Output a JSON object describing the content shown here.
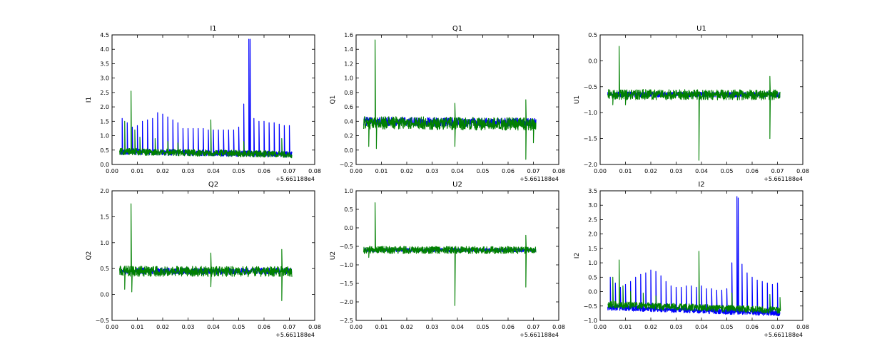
{
  "figure": {
    "background": "#ffffff",
    "series_colors": [
      "#0000ff",
      "#008000"
    ]
  },
  "chart_data": [
    {
      "type": "line",
      "title": "I1",
      "ylabel": "I1",
      "xlim": [
        0.0,
        0.08
      ],
      "ylim": [
        0.0,
        4.5
      ],
      "x_ticks": [
        "0.00",
        "0.01",
        "0.02",
        "0.03",
        "0.04",
        "0.05",
        "0.06",
        "0.07",
        "0.08"
      ],
      "y_ticks": [
        "0.0",
        "0.5",
        "1.0",
        "1.5",
        "2.0",
        "2.5",
        "3.0",
        "3.5",
        "4.0",
        "4.5"
      ],
      "x_offset_label": "+5.661188e4",
      "x_range": [
        0.003,
        0.071
      ],
      "grid": false,
      "series": [
        {
          "color": "#0000ff",
          "base_start": 0.45,
          "base_end": 0.35,
          "noise": 0.1,
          "spikes": [
            [
              0.004,
              1.6
            ],
            [
              0.006,
              1.45
            ],
            [
              0.008,
              1.3
            ],
            [
              0.01,
              1.35
            ],
            [
              0.012,
              1.5
            ],
            [
              0.014,
              1.55
            ],
            [
              0.016,
              1.6
            ],
            [
              0.018,
              1.8
            ],
            [
              0.02,
              1.75
            ],
            [
              0.022,
              1.65
            ],
            [
              0.024,
              1.55
            ],
            [
              0.026,
              1.45
            ],
            [
              0.028,
              1.25
            ],
            [
              0.03,
              1.25
            ],
            [
              0.032,
              1.25
            ],
            [
              0.034,
              1.25
            ],
            [
              0.036,
              1.25
            ],
            [
              0.038,
              1.2
            ],
            [
              0.04,
              1.2
            ],
            [
              0.042,
              1.2
            ],
            [
              0.044,
              1.2
            ],
            [
              0.046,
              1.2
            ],
            [
              0.048,
              1.2
            ],
            [
              0.05,
              1.3
            ],
            [
              0.052,
              2.1
            ],
            [
              0.054,
              4.35
            ],
            [
              0.0545,
              4.35
            ],
            [
              0.056,
              1.6
            ],
            [
              0.058,
              1.5
            ],
            [
              0.06,
              1.5
            ],
            [
              0.062,
              1.45
            ],
            [
              0.064,
              1.45
            ],
            [
              0.066,
              1.4
            ],
            [
              0.068,
              1.35
            ],
            [
              0.07,
              1.35
            ]
          ]
        },
        {
          "color": "#008000",
          "base_start": 0.45,
          "base_end": 0.35,
          "noise": 0.12,
          "spikes": [
            [
              0.005,
              1.5
            ],
            [
              0.0075,
              2.55
            ],
            [
              0.009,
              1.2
            ],
            [
              0.011,
              0.95
            ],
            [
              0.017,
              0.9
            ],
            [
              0.022,
              0.8
            ],
            [
              0.026,
              0.75
            ],
            [
              0.039,
              1.55
            ],
            [
              0.052,
              0.8
            ],
            [
              0.067,
              0.9
            ]
          ]
        }
      ]
    },
    {
      "type": "line",
      "title": "Q1",
      "ylabel": "Q1",
      "xlim": [
        0.0,
        0.08
      ],
      "ylim": [
        -0.2,
        1.6
      ],
      "x_ticks": [
        "0.00",
        "0.01",
        "0.02",
        "0.03",
        "0.04",
        "0.05",
        "0.06",
        "0.07",
        "0.08"
      ],
      "y_ticks": [
        "−0.2",
        "0.0",
        "0.2",
        "0.4",
        "0.6",
        "0.8",
        "1.0",
        "1.2",
        "1.4",
        "1.6"
      ],
      "x_offset_label": "+5.661188e4",
      "x_range": [
        0.003,
        0.071
      ],
      "grid": false,
      "series": [
        {
          "color": "#0000ff",
          "base_start": 0.4,
          "base_end": 0.38,
          "noise": 0.06,
          "spikes": []
        },
        {
          "color": "#008000",
          "base_start": 0.38,
          "base_end": 0.36,
          "noise": 0.09,
          "spikes": [
            [
              0.0075,
              1.53
            ],
            [
              0.039,
              0.65
            ],
            [
              0.067,
              0.7
            ],
            [
              0.005,
              0.05
            ],
            [
              0.008,
              0.02
            ],
            [
              0.039,
              0.05
            ],
            [
              0.067,
              -0.13
            ],
            [
              0.07,
              0.1
            ]
          ]
        }
      ]
    },
    {
      "type": "line",
      "title": "U1",
      "ylabel": "U1",
      "xlim": [
        0.0,
        0.08
      ],
      "ylim": [
        -2.0,
        0.5
      ],
      "x_ticks": [
        "0.00",
        "0.01",
        "0.02",
        "0.03",
        "0.04",
        "0.05",
        "0.06",
        "0.07",
        "0.08"
      ],
      "y_ticks": [
        "−2.0",
        "−1.5",
        "−1.0",
        "−0.5",
        "0.0",
        "0.5"
      ],
      "x_offset_label": "+5.661188e4",
      "x_range": [
        0.003,
        0.071
      ],
      "grid": false,
      "series": [
        {
          "color": "#0000ff",
          "base_start": -0.65,
          "base_end": -0.65,
          "noise": 0.05,
          "spikes": []
        },
        {
          "color": "#008000",
          "base_start": -0.65,
          "base_end": -0.66,
          "noise": 0.1,
          "spikes": [
            [
              0.0075,
              0.28
            ],
            [
              0.039,
              -1.92
            ],
            [
              0.067,
              -0.3
            ],
            [
              0.067,
              -1.5
            ],
            [
              0.005,
              -0.85
            ],
            [
              0.01,
              -0.85
            ]
          ]
        }
      ]
    },
    {
      "type": "line",
      "title": "Q2",
      "ylabel": "Q2",
      "xlim": [
        0.0,
        0.08
      ],
      "ylim": [
        -0.5,
        2.0
      ],
      "x_ticks": [
        "0.00",
        "0.01",
        "0.02",
        "0.03",
        "0.04",
        "0.05",
        "0.06",
        "0.07",
        "0.08"
      ],
      "y_ticks": [
        "−0.5",
        "0.0",
        "0.5",
        "1.0",
        "1.5",
        "2.0"
      ],
      "x_offset_label": "+5.661188e4",
      "x_range": [
        0.003,
        0.071
      ],
      "grid": false,
      "series": [
        {
          "color": "#0000ff",
          "base_start": 0.45,
          "base_end": 0.45,
          "noise": 0.06,
          "spikes": []
        },
        {
          "color": "#008000",
          "base_start": 0.45,
          "base_end": 0.44,
          "noise": 0.1,
          "spikes": [
            [
              0.0075,
              1.75
            ],
            [
              0.039,
              0.8
            ],
            [
              0.067,
              0.87
            ],
            [
              0.005,
              0.1
            ],
            [
              0.0078,
              0.05
            ],
            [
              0.039,
              0.15
            ],
            [
              0.067,
              -0.12
            ]
          ]
        }
      ]
    },
    {
      "type": "line",
      "title": "U2",
      "ylabel": "U2",
      "xlim": [
        0.0,
        0.08
      ],
      "ylim": [
        -2.5,
        1.0
      ],
      "x_ticks": [
        "0.00",
        "0.01",
        "0.02",
        "0.03",
        "0.04",
        "0.05",
        "0.06",
        "0.07",
        "0.08"
      ],
      "y_ticks": [
        "−2.5",
        "−2.0",
        "−1.5",
        "−1.0",
        "−0.5",
        "0.0",
        "0.5",
        "1.0"
      ],
      "x_offset_label": "+5.661188e4",
      "x_range": [
        0.003,
        0.071
      ],
      "grid": false,
      "series": [
        {
          "color": "#0000ff",
          "base_start": -0.6,
          "base_end": -0.6,
          "noise": 0.05,
          "spikes": []
        },
        {
          "color": "#008000",
          "base_start": -0.6,
          "base_end": -0.6,
          "noise": 0.1,
          "spikes": [
            [
              0.0075,
              0.68
            ],
            [
              0.039,
              -2.1
            ],
            [
              0.067,
              -0.2
            ],
            [
              0.067,
              -1.6
            ],
            [
              0.005,
              -0.8
            ]
          ]
        }
      ]
    },
    {
      "type": "line",
      "title": "I2",
      "ylabel": "I2",
      "xlim": [
        0.0,
        0.08
      ],
      "ylim": [
        -1.0,
        3.5
      ],
      "x_ticks": [
        "0.00",
        "0.01",
        "0.02",
        "0.03",
        "0.04",
        "0.05",
        "0.06",
        "0.07",
        "0.08"
      ],
      "y_ticks": [
        "−1.0",
        "−0.5",
        "0.0",
        "0.5",
        "1.0",
        "1.5",
        "2.0",
        "2.5",
        "3.0",
        "3.5"
      ],
      "x_offset_label": "+5.661188e4",
      "x_range": [
        0.003,
        0.071
      ],
      "grid": false,
      "series": [
        {
          "color": "#0000ff",
          "base_start": -0.55,
          "base_end": -0.75,
          "noise": 0.1,
          "spikes": [
            [
              0.004,
              0.5
            ],
            [
              0.006,
              0.3
            ],
            [
              0.008,
              0.15
            ],
            [
              0.01,
              0.25
            ],
            [
              0.012,
              0.35
            ],
            [
              0.014,
              0.5
            ],
            [
              0.016,
              0.6
            ],
            [
              0.018,
              0.65
            ],
            [
              0.02,
              0.75
            ],
            [
              0.022,
              0.7
            ],
            [
              0.024,
              0.55
            ],
            [
              0.026,
              0.35
            ],
            [
              0.028,
              0.2
            ],
            [
              0.03,
              0.15
            ],
            [
              0.032,
              0.15
            ],
            [
              0.034,
              0.2
            ],
            [
              0.036,
              0.2
            ],
            [
              0.038,
              0.15
            ],
            [
              0.04,
              0.2
            ],
            [
              0.042,
              0.1
            ],
            [
              0.044,
              0.1
            ],
            [
              0.046,
              0.05
            ],
            [
              0.048,
              0.05
            ],
            [
              0.05,
              0.1
            ],
            [
              0.052,
              1.0
            ],
            [
              0.054,
              3.3
            ],
            [
              0.0545,
              3.25
            ],
            [
              0.056,
              0.95
            ],
            [
              0.058,
              0.65
            ],
            [
              0.06,
              0.5
            ],
            [
              0.062,
              0.4
            ],
            [
              0.064,
              0.35
            ],
            [
              0.066,
              0.3
            ],
            [
              0.068,
              0.25
            ],
            [
              0.07,
              0.3
            ]
          ]
        },
        {
          "color": "#008000",
          "base_start": -0.45,
          "base_end": -0.65,
          "noise": 0.12,
          "spikes": [
            [
              0.005,
              0.5
            ],
            [
              0.0075,
              1.1
            ],
            [
              0.009,
              0.2
            ],
            [
              0.012,
              0.0
            ],
            [
              0.017,
              -0.05
            ],
            [
              0.022,
              -0.15
            ],
            [
              0.039,
              1.4
            ],
            [
              0.052,
              -0.05
            ],
            [
              0.067,
              -0.1
            ],
            [
              0.071,
              -0.2
            ]
          ]
        }
      ]
    }
  ]
}
